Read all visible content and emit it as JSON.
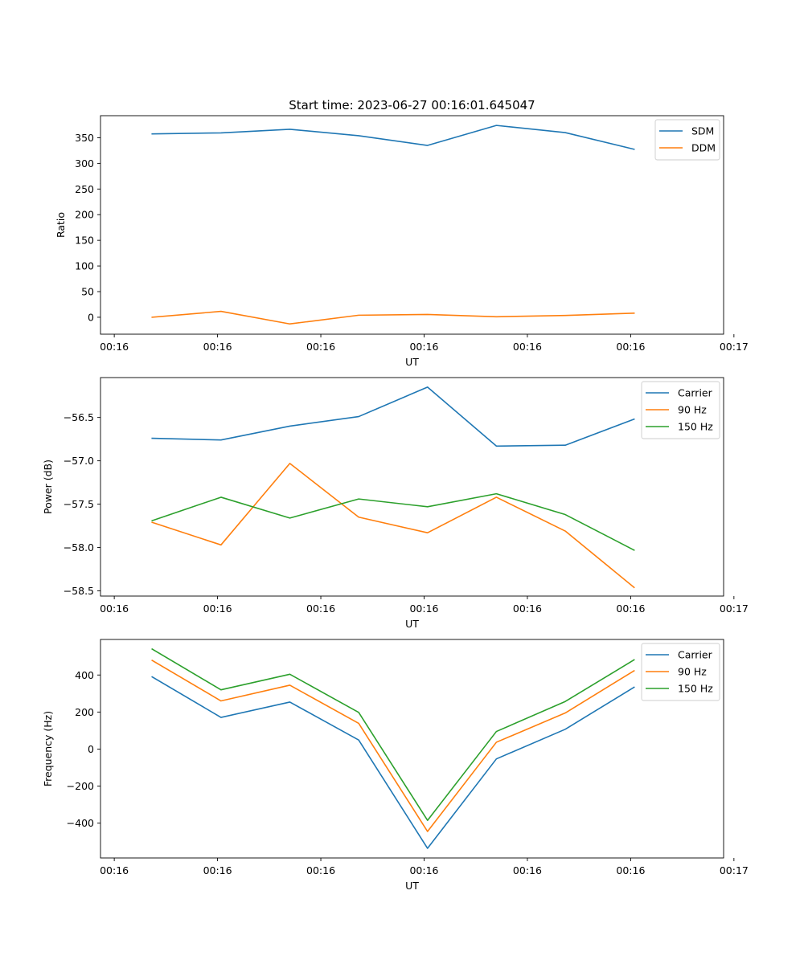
{
  "figure": {
    "title": "Start time: 2023-06-27 00:16:01.645047"
  },
  "colors": {
    "blue": "#1f77b4",
    "orange": "#ff7f0e",
    "green": "#2ca02c"
  },
  "chart_data": [
    {
      "type": "line",
      "title": "Start time: 2023-06-27 00:16:01.645047",
      "xlabel": "UT",
      "ylabel": "Ratio",
      "x": [
        1,
        2,
        3,
        4,
        5,
        6,
        7,
        8
      ],
      "xlim": [
        0.25,
        9.3
      ],
      "x_ticks": [
        0.45,
        1.95,
        3.45,
        4.95,
        6.45,
        7.95,
        9.45
      ],
      "x_tick_labels": [
        "00:16",
        "00:16",
        "00:16",
        "00:16",
        "00:16",
        "00:16",
        "00:17"
      ],
      "ylim": [
        -33,
        393
      ],
      "y_ticks": [
        0,
        50,
        100,
        150,
        200,
        250,
        300,
        350
      ],
      "grid": false,
      "legend": "top-right",
      "series": [
        {
          "name": "SDM",
          "color": "#1f77b4",
          "values": [
            357.5,
            359.5,
            366.5,
            354,
            335,
            374,
            360,
            327.5
          ]
        },
        {
          "name": "DDM",
          "color": "#ff7f0e",
          "values": [
            0,
            11.5,
            -13,
            4,
            5.5,
            1,
            3.5,
            8
          ]
        }
      ]
    },
    {
      "type": "line",
      "title": "",
      "xlabel": "UT",
      "ylabel": "Power (dB)",
      "x": [
        1,
        2,
        3,
        4,
        5,
        6,
        7,
        8
      ],
      "xlim": [
        0.25,
        9.3
      ],
      "x_ticks": [
        0.45,
        1.95,
        3.45,
        4.95,
        6.45,
        7.95,
        9.45
      ],
      "x_tick_labels": [
        "00:16",
        "00:16",
        "00:16",
        "00:16",
        "00:16",
        "00:16",
        "00:17"
      ],
      "ylim": [
        -58.56,
        -56.04
      ],
      "y_ticks": [
        -58.5,
        -58.0,
        -57.5,
        -57.0,
        -56.5
      ],
      "y_tick_labels": [
        "−58.5",
        "−58.0",
        "−57.5",
        "−57.0",
        "−56.5"
      ],
      "grid": false,
      "legend": "top-right",
      "series": [
        {
          "name": "Carrier",
          "color": "#1f77b4",
          "values": [
            -56.74,
            -56.76,
            -56.6,
            -56.49,
            -56.15,
            -56.83,
            -56.82,
            -56.52
          ]
        },
        {
          "name": "90 Hz",
          "color": "#ff7f0e",
          "values": [
            -57.71,
            -57.97,
            -57.03,
            -57.65,
            -57.83,
            -57.42,
            -57.81,
            -58.46
          ]
        },
        {
          "name": "150 Hz",
          "color": "#2ca02c",
          "values": [
            -57.69,
            -57.42,
            -57.66,
            -57.44,
            -57.53,
            -57.38,
            -57.62,
            -58.03
          ]
        }
      ]
    },
    {
      "type": "line",
      "title": "",
      "xlabel": "UT",
      "ylabel": "Frequency (Hz)",
      "x": [
        1,
        2,
        3,
        4,
        5,
        6,
        7,
        8
      ],
      "xlim": [
        0.25,
        9.3
      ],
      "x_ticks": [
        0.45,
        1.95,
        3.45,
        4.95,
        6.45,
        7.95,
        9.45
      ],
      "x_tick_labels": [
        "00:16",
        "00:16",
        "00:16",
        "00:16",
        "00:16",
        "00:16",
        "00:17"
      ],
      "ylim": [
        -588,
        592
      ],
      "y_ticks": [
        -400,
        -200,
        0,
        200,
        400
      ],
      "y_tick_labels": [
        "−400",
        "−200",
        "0",
        "200",
        "400"
      ],
      "grid": false,
      "legend": "top-right",
      "series": [
        {
          "name": "Carrier",
          "color": "#1f77b4",
          "values": [
            390,
            171,
            254,
            49,
            -536,
            -53,
            107,
            334
          ]
        },
        {
          "name": "90 Hz",
          "color": "#ff7f0e",
          "values": [
            479,
            260,
            345,
            139,
            -445,
            37,
            195,
            423
          ]
        },
        {
          "name": "150 Hz",
          "color": "#2ca02c",
          "values": [
            540,
            320,
            404,
            198,
            -385,
            95,
            257,
            482
          ]
        }
      ]
    }
  ]
}
